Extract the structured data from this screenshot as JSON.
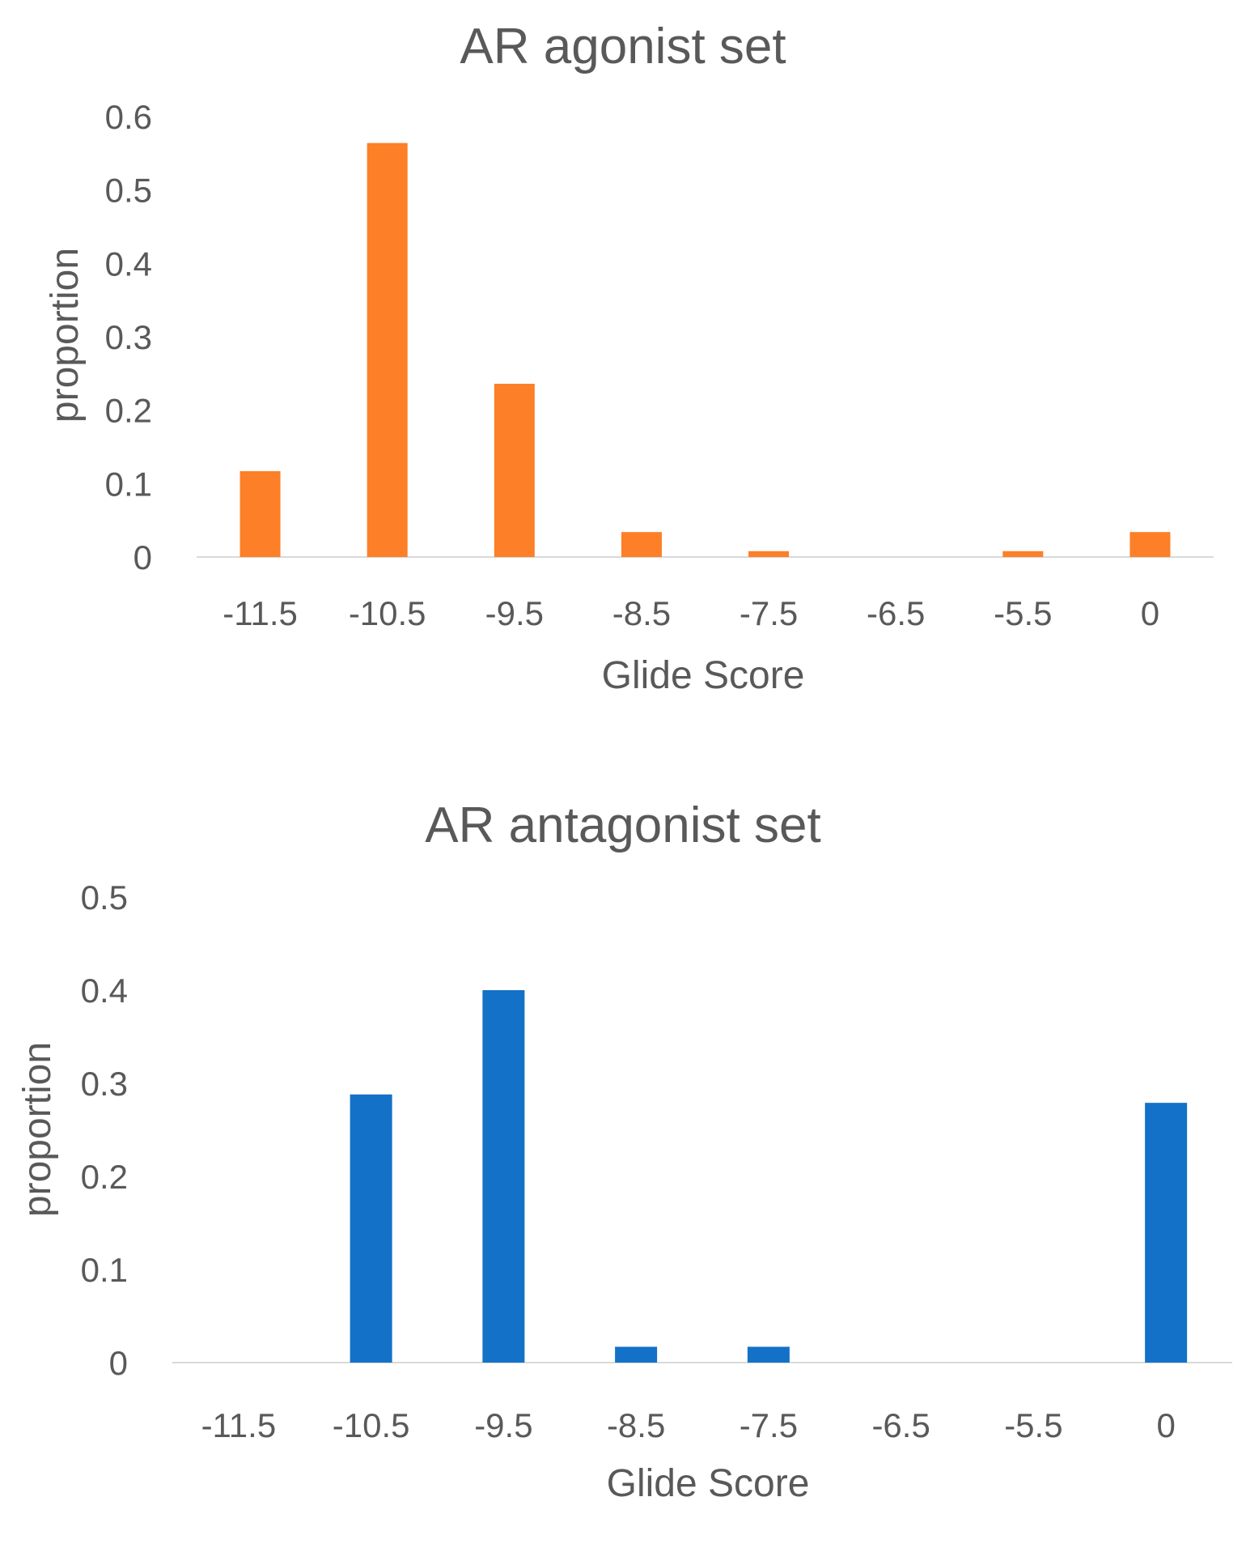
{
  "chart_data": [
    {
      "type": "bar",
      "title": "AR agonist set",
      "xlabel": "Glide Score",
      "ylabel": "proportion",
      "categories": [
        "-11.5",
        "-10.5",
        "-9.5",
        "-8.5",
        "-7.5",
        "-6.5",
        "-5.5",
        "0"
      ],
      "values": [
        0.117,
        0.564,
        0.236,
        0.034,
        0.008,
        0,
        0.008,
        0.034
      ],
      "yticks": [
        "0",
        "0.1",
        "0.2",
        "0.3",
        "0.4",
        "0.5",
        "0.6"
      ],
      "ylim": [
        0,
        0.6
      ],
      "color": "#fd7f27",
      "grid": false,
      "legend": "none"
    },
    {
      "type": "bar",
      "title": "AR antagonist set",
      "xlabel": "Glide Score",
      "ylabel": "proportion",
      "categories": [
        "-11.5",
        "-10.5",
        "-9.5",
        "-8.5",
        "-7.5",
        "-6.5",
        "-5.5",
        "0"
      ],
      "values": [
        0,
        0.288,
        0.4,
        0.017,
        0.017,
        0,
        0,
        0.279
      ],
      "yticks": [
        "0",
        "0.1",
        "0.2",
        "0.3",
        "0.4",
        "0.5"
      ],
      "ylim": [
        0,
        0.5
      ],
      "color": "#1371c8",
      "grid": false,
      "legend": "none"
    }
  ]
}
